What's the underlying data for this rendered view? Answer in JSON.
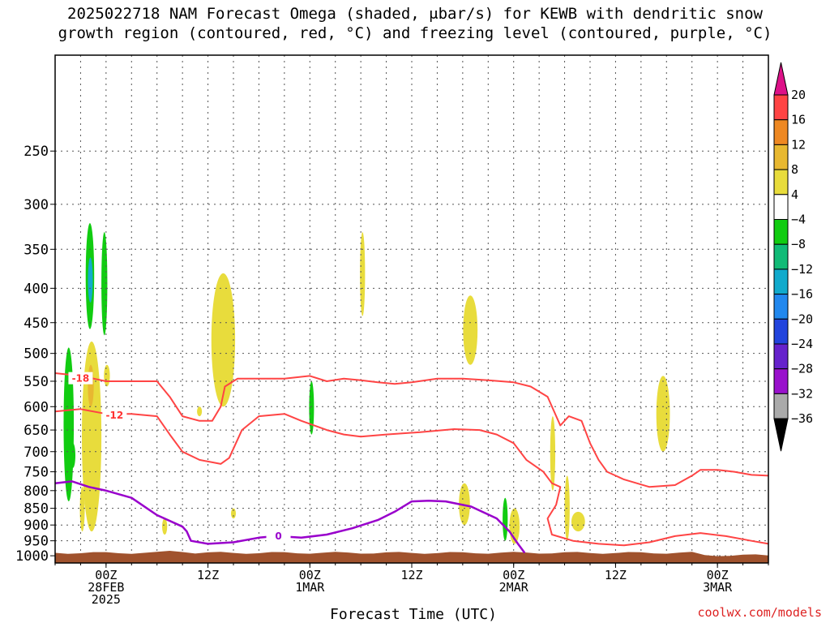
{
  "title": {
    "line1": "2025022718 NAM Forecast Omega (shaded, μbar/s) for KEWB with dendritic snow",
    "line2": "growth region (contoured, red, °C) and freezing level (contoured, purple, °C)"
  },
  "x_axis_title": "Forecast Time (UTC)",
  "watermark": "coolwx.com/models",
  "colors": {
    "dendritic_contour": "#ff4444",
    "freezing_level_contour": "#9900cc",
    "terrain": "#a0522d",
    "grid": "#555555"
  },
  "chart_data": {
    "type": "time-height cross-section",
    "title": "2025022718 NAM Forecast Omega (shaded, μbar/s) for KEWB with dendritic snow growth region (contoured, red, °C) and freezing level (contoured, purple, °C)",
    "xlabel": "Forecast Time (UTC)",
    "ylabel": "",
    "x_unit": "hours since 2025-02-27 18Z",
    "xlim": [
      0,
      84
    ],
    "x_ticks": [
      {
        "hour": 6,
        "lines": [
          "00Z",
          "28FEB",
          "2025"
        ]
      },
      {
        "hour": 18,
        "lines": [
          "12Z"
        ]
      },
      {
        "hour": 30,
        "lines": [
          "00Z",
          "1MAR"
        ]
      },
      {
        "hour": 42,
        "lines": [
          "12Z"
        ]
      },
      {
        "hour": 54,
        "lines": [
          "00Z",
          "2MAR"
        ]
      },
      {
        "hour": 66,
        "lines": [
          "12Z"
        ]
      },
      {
        "hour": 78,
        "lines": [
          "00Z",
          "3MAR"
        ]
      }
    ],
    "y_scale": "log pressure (hPa), inverted",
    "ylim": [
      1025,
      180
    ],
    "y_ticks": [
      250,
      300,
      350,
      400,
      450,
      500,
      550,
      600,
      650,
      700,
      750,
      800,
      850,
      900,
      950,
      1000
    ],
    "grid": true,
    "colorbar": {
      "levels": [
        20,
        16,
        12,
        8,
        4,
        -4,
        -8,
        -12,
        -16,
        -20,
        -24,
        -28,
        -32,
        -36
      ],
      "bins": [
        {
          "from": 16,
          "to": 20,
          "color": "#ff4444"
        },
        {
          "from": 12,
          "to": 16,
          "color": "#ee8822"
        },
        {
          "from": 8,
          "to": 12,
          "color": "#e8b830"
        },
        {
          "from": 4,
          "to": 8,
          "color": "#e8dc3c"
        },
        {
          "from": -4,
          "to": 4,
          "color": "#ffffff"
        },
        {
          "from": -8,
          "to": -4,
          "color": "#11cc11"
        },
        {
          "from": -12,
          "to": -8,
          "color": "#11bb77"
        },
        {
          "from": -16,
          "to": -12,
          "color": "#11aacc"
        },
        {
          "from": -20,
          "to": -16,
          "color": "#2288ee"
        },
        {
          "from": -24,
          "to": -20,
          "color": "#2244dd"
        },
        {
          "from": -28,
          "to": -24,
          "color": "#6622cc"
        },
        {
          "from": -32,
          "to": -28,
          "color": "#9911cc"
        },
        {
          "from": -36,
          "to": -32,
          "color": "#aaaaaa"
        }
      ],
      "top_arrow_color": "#dd1188",
      "bottom_arrow_color": "#000000"
    },
    "omega_shading": [
      {
        "value": 6,
        "t": 4.3,
        "dt": 2.3,
        "p_top": 480,
        "p_bot": 920,
        "color": "#e8dc3c"
      },
      {
        "value": 10,
        "t": 4.2,
        "dt": 0.7,
        "p_top": 520,
        "p_bot": 600,
        "color": "#e8b830"
      },
      {
        "value": 6,
        "t": 6.1,
        "dt": 0.7,
        "p_top": 520,
        "p_bot": 560,
        "color": "#e8dc3c"
      },
      {
        "value": 6,
        "t": 3.2,
        "dt": 0.5,
        "p_top": 790,
        "p_bot": 920,
        "color": "#e8dc3c"
      },
      {
        "value": -6,
        "t": 1.6,
        "dt": 1.2,
        "p_top": 490,
        "p_bot": 830,
        "color": "#11cc11"
      },
      {
        "value": -6,
        "t": 4.1,
        "dt": 1.0,
        "p_top": 320,
        "p_bot": 460,
        "color": "#11cc11"
      },
      {
        "value": -10,
        "t": 4.15,
        "dt": 0.5,
        "p_top": 360,
        "p_bot": 420,
        "color": "#11aacc"
      },
      {
        "value": -6,
        "t": 5.8,
        "dt": 0.7,
        "p_top": 330,
        "p_bot": 470,
        "color": "#11cc11"
      },
      {
        "value": -6,
        "t": 2.1,
        "dt": 0.4,
        "p_top": 680,
        "p_bot": 740,
        "color": "#11cc11"
      },
      {
        "value": 6,
        "t": 12.9,
        "dt": 0.6,
        "p_top": 880,
        "p_bot": 930,
        "color": "#e8dc3c"
      },
      {
        "value": 6,
        "t": 17.0,
        "dt": 0.4,
        "p_top": 600,
        "p_bot": 620,
        "color": "#e8dc3c"
      },
      {
        "value": 6,
        "t": 19.8,
        "dt": 2.8,
        "p_top": 380,
        "p_bot": 600,
        "color": "#e8dc3c"
      },
      {
        "value": 6,
        "t": 21.0,
        "dt": 0.5,
        "p_top": 850,
        "p_bot": 880,
        "color": "#e8dc3c"
      },
      {
        "value": 6,
        "t": 36.2,
        "dt": 0.6,
        "p_top": 330,
        "p_bot": 440,
        "color": "#e8dc3c"
      },
      {
        "value": -6,
        "t": 30.2,
        "dt": 0.5,
        "p_top": 550,
        "p_bot": 660,
        "color": "#11cc11"
      },
      {
        "value": 6,
        "t": 48.9,
        "dt": 1.7,
        "p_top": 410,
        "p_bot": 520,
        "color": "#e8dc3c"
      },
      {
        "value": 6,
        "t": 48.2,
        "dt": 1.3,
        "p_top": 780,
        "p_bot": 900,
        "color": "#e8dc3c"
      },
      {
        "value": -6,
        "t": 53.0,
        "dt": 0.6,
        "p_top": 820,
        "p_bot": 950,
        "color": "#11cc11"
      },
      {
        "value": 6,
        "t": 54.1,
        "dt": 1.2,
        "p_top": 850,
        "p_bot": 960,
        "color": "#e8dc3c"
      },
      {
        "value": 6,
        "t": 58.6,
        "dt": 0.6,
        "p_top": 620,
        "p_bot": 800,
        "color": "#e8dc3c"
      },
      {
        "value": 6,
        "t": 60.3,
        "dt": 0.6,
        "p_top": 760,
        "p_bot": 950,
        "color": "#e8dc3c"
      },
      {
        "value": 6,
        "t": 61.6,
        "dt": 1.6,
        "p_top": 860,
        "p_bot": 920,
        "color": "#e8dc3c"
      },
      {
        "value": 6,
        "t": 71.6,
        "dt": 1.6,
        "p_top": 540,
        "p_bot": 700,
        "color": "#e8dc3c"
      }
    ],
    "dendritic_contours": [
      {
        "label": "-18",
        "label_at": [
          3.0,
          545
        ],
        "points": [
          [
            0,
            535
          ],
          [
            3,
            540
          ],
          [
            6,
            550
          ],
          [
            9,
            550
          ],
          [
            12,
            550
          ],
          [
            13.5,
            580
          ],
          [
            15,
            620
          ],
          [
            17,
            630
          ],
          [
            18.5,
            630
          ],
          [
            19.5,
            600
          ],
          [
            20,
            560
          ],
          [
            21.5,
            545
          ],
          [
            24,
            545
          ],
          [
            27,
            545
          ],
          [
            30,
            540
          ],
          [
            32,
            550
          ],
          [
            34,
            545
          ],
          [
            36,
            548
          ],
          [
            38,
            552
          ],
          [
            40,
            555
          ],
          [
            42,
            552
          ],
          [
            45,
            545
          ],
          [
            48,
            545
          ],
          [
            51,
            548
          ],
          [
            54,
            552
          ],
          [
            56,
            560
          ],
          [
            58,
            580
          ],
          [
            59.5,
            640
          ],
          [
            60.5,
            620
          ],
          [
            62,
            630
          ],
          [
            63,
            680
          ],
          [
            64,
            720
          ],
          [
            65,
            750
          ],
          [
            67,
            770
          ],
          [
            70,
            790
          ],
          [
            73,
            785
          ],
          [
            75,
            760
          ],
          [
            76,
            745
          ],
          [
            78,
            745
          ],
          [
            80,
            750
          ],
          [
            82,
            758
          ],
          [
            84,
            760
          ]
        ]
      },
      {
        "label": "-12",
        "label_at": [
          7.0,
          618
        ],
        "points": [
          [
            0,
            610
          ],
          [
            3,
            605
          ],
          [
            6,
            615
          ],
          [
            9,
            615
          ],
          [
            12,
            620
          ],
          [
            13.5,
            660
          ],
          [
            15,
            700
          ],
          [
            17,
            720
          ],
          [
            19.5,
            730
          ],
          [
            20.5,
            715
          ],
          [
            22,
            650
          ],
          [
            24,
            620
          ],
          [
            27,
            615
          ],
          [
            29,
            630
          ],
          [
            32,
            650
          ],
          [
            34,
            660
          ],
          [
            36,
            665
          ],
          [
            39,
            660
          ],
          [
            43,
            655
          ],
          [
            47,
            648
          ],
          [
            50,
            650
          ],
          [
            52,
            660
          ],
          [
            54,
            680
          ],
          [
            55.5,
            720
          ],
          [
            57.5,
            750
          ],
          [
            58.5,
            780
          ],
          [
            59.5,
            790
          ],
          [
            59,
            840
          ],
          [
            58,
            880
          ],
          [
            58.5,
            930
          ],
          [
            61,
            950
          ],
          [
            64,
            960
          ],
          [
            67,
            965
          ],
          [
            70,
            955
          ],
          [
            73,
            935
          ],
          [
            76,
            925
          ],
          [
            79,
            935
          ],
          [
            82,
            950
          ],
          [
            84,
            960
          ]
        ]
      }
    ],
    "freezing_level": {
      "label": "0",
      "label_at": [
        26.3,
        935
      ],
      "points": [
        [
          0,
          780
        ],
        [
          2,
          775
        ],
        [
          4,
          790
        ],
        [
          6,
          800
        ],
        [
          9,
          820
        ],
        [
          12,
          870
        ],
        [
          15,
          905
        ],
        [
          15.5,
          920
        ],
        [
          16,
          950
        ],
        [
          18,
          960
        ],
        [
          21,
          955
        ],
        [
          24,
          940
        ],
        [
          26,
          935
        ],
        [
          29,
          940
        ],
        [
          32,
          930
        ],
        [
          35,
          910
        ],
        [
          38,
          885
        ],
        [
          40,
          860
        ],
        [
          42,
          830
        ],
        [
          44,
          828
        ],
        [
          46,
          830
        ],
        [
          49,
          845
        ],
        [
          52,
          880
        ],
        [
          53.5,
          920
        ],
        [
          54.5,
          960
        ],
        [
          55.3,
          990
        ]
      ]
    },
    "terrain_top_hpa": 990
  }
}
